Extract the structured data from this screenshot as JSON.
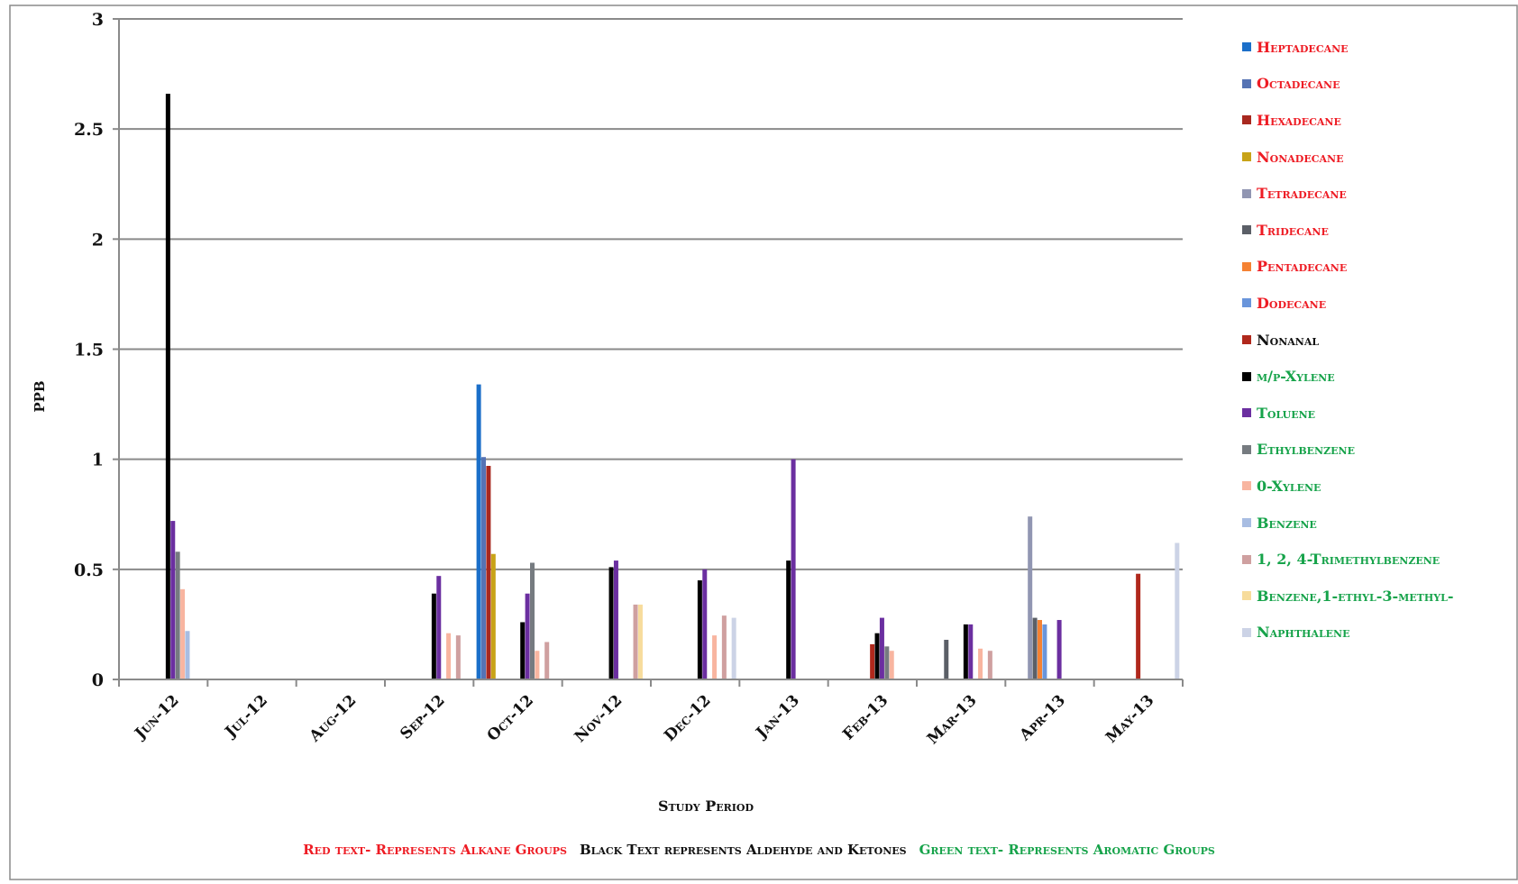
{
  "chart_data": {
    "type": "bar",
    "title": "",
    "xlabel": "Study Period",
    "ylabel": "PPB",
    "ylim": [
      0,
      3
    ],
    "yticks": [
      "0",
      "0.5",
      "1",
      "1.5",
      "2",
      "2.5",
      "3"
    ],
    "ytick_values": [
      0,
      0.5,
      1,
      1.5,
      2,
      2.5,
      3
    ],
    "categories": [
      "Jun-12",
      "Jul-12",
      "Aug-12",
      "Sep-12",
      "Oct-12",
      "Nov-12",
      "Dec-12",
      "Jan-13",
      "Feb-13",
      "Mar-13",
      "Apr-13",
      "May-13"
    ],
    "grid": true,
    "legend_position": "right",
    "series": [
      {
        "name": "Heptadecane",
        "color": "#1b6fc9",
        "label_color": "#ee1c24",
        "values": [
          0,
          0,
          0,
          0,
          1.34,
          0,
          0,
          0,
          0,
          0,
          0,
          0
        ]
      },
      {
        "name": "Octadecane",
        "color": "#5573b4",
        "label_color": "#ee1c24",
        "values": [
          0,
          0,
          0,
          0,
          1.01,
          0,
          0,
          0,
          0,
          0,
          0,
          0
        ]
      },
      {
        "name": "Hexadecane",
        "color": "#a8281f",
        "label_color": "#ee1c24",
        "values": [
          0,
          0,
          0,
          0,
          0.97,
          0,
          0,
          0,
          0,
          0,
          0,
          0
        ]
      },
      {
        "name": "Nonadecane",
        "color": "#c8a317",
        "label_color": "#ee1c24",
        "values": [
          0,
          0,
          0,
          0,
          0.57,
          0,
          0,
          0,
          0,
          0,
          0,
          0
        ]
      },
      {
        "name": "Tetradecane",
        "color": "#9196b2",
        "label_color": "#ee1c24",
        "values": [
          0,
          0,
          0,
          0,
          0,
          0,
          0,
          0,
          0,
          0,
          0.74,
          0
        ]
      },
      {
        "name": "Tridecane",
        "color": "#5b5f67",
        "label_color": "#ee1c24",
        "values": [
          0,
          0,
          0,
          0,
          0,
          0,
          0,
          0,
          0,
          0.18,
          0.28,
          0
        ]
      },
      {
        "name": "Pentadecane",
        "color": "#f58233",
        "label_color": "#ee1c24",
        "values": [
          0,
          0,
          0,
          0,
          0,
          0,
          0,
          0,
          0,
          0,
          0.27,
          0
        ]
      },
      {
        "name": "Dodecane",
        "color": "#6995db",
        "label_color": "#ee1c24",
        "values": [
          0,
          0,
          0,
          0,
          0,
          0,
          0,
          0,
          0,
          0,
          0.25,
          0
        ]
      },
      {
        "name": "Nonanal",
        "color": "#b0281c",
        "label_color": "#111111",
        "values": [
          0,
          0,
          0,
          0,
          0,
          0,
          0,
          0,
          0.16,
          0,
          0,
          0.48
        ]
      },
      {
        "name": "m/p-Xylene",
        "color": "#000000",
        "label_color": "#16a34a",
        "values": [
          2.66,
          0,
          0,
          0.39,
          0.26,
          0.51,
          0.45,
          0.54,
          0.21,
          0.25,
          0,
          0
        ]
      },
      {
        "name": "Toluene",
        "color": "#6b2fa0",
        "label_color": "#16a34a",
        "values": [
          0.72,
          0,
          0,
          0.47,
          0.39,
          0.54,
          0.5,
          1.0,
          0.28,
          0.25,
          0.27,
          0
        ]
      },
      {
        "name": "Ethylbenzene",
        "color": "#767b80",
        "label_color": "#16a34a",
        "values": [
          0.58,
          0,
          0,
          0,
          0.53,
          0,
          0,
          0,
          0.15,
          0,
          0,
          0
        ]
      },
      {
        "name": "0-Xylene",
        "color": "#f8b5a0",
        "label_color": "#16a34a",
        "values": [
          0.41,
          0,
          0,
          0.21,
          0.13,
          0,
          0.2,
          0,
          0.13,
          0.14,
          0,
          0
        ]
      },
      {
        "name": "Benzene",
        "color": "#a8bde2",
        "label_color": "#16a34a",
        "values": [
          0.22,
          0,
          0,
          0,
          0,
          0,
          0,
          0,
          0,
          0,
          0,
          0
        ]
      },
      {
        "name": "1, 2, 4-Trimethylbenzene",
        "color": "#cfa0a0",
        "label_color": "#16a34a",
        "values": [
          0,
          0,
          0,
          0.2,
          0.17,
          0.34,
          0.29,
          0,
          0,
          0.13,
          0,
          0
        ]
      },
      {
        "name": "Benzene,1-ethyl-3-methyl-",
        "color": "#f7dc9c",
        "label_color": "#16a34a",
        "values": [
          0,
          0,
          0,
          0,
          0,
          0.34,
          0,
          0,
          0,
          0,
          0,
          0
        ]
      },
      {
        "name": "Naphthalene",
        "color": "#ccd3e6",
        "label_color": "#16a34a",
        "values": [
          0,
          0,
          0,
          0,
          0,
          0,
          0.28,
          0,
          0,
          0,
          0,
          0.62
        ]
      }
    ],
    "footnotes": [
      {
        "text": "Red text- Represents Alkane Groups",
        "color": "#ee1c24"
      },
      {
        "text": "Black Text represents Aldehyde and Ketones",
        "color": "#111111"
      },
      {
        "text": "Green text- Represents Aromatic Groups",
        "color": "#16a34a"
      }
    ]
  }
}
